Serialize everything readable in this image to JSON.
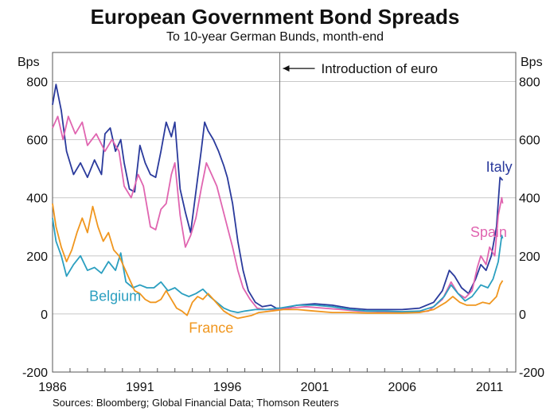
{
  "chart_data": {
    "type": "line",
    "title": "European Government Bond Spreads",
    "subtitle": "To 10-year German Bunds, month-end",
    "source": "Sources: Bloomberg; Global Financial Data; Thomson Reuters",
    "y_unit_left": "Bps",
    "y_unit_right": "Bps",
    "ylim": [
      -200,
      900
    ],
    "y_ticks": [
      "800",
      "600",
      "400",
      "200",
      "0",
      "-200"
    ],
    "y_ticks_right": [
      "800",
      "600",
      "400",
      "200",
      "0",
      "-200"
    ],
    "x_ticks": [
      "1986",
      "1991",
      "1996",
      "2001",
      "2006",
      "2011"
    ],
    "x_tick_values": [
      1986,
      1991,
      1996,
      2001,
      2006,
      2011
    ],
    "xlim": [
      1986,
      2012.5
    ],
    "grid": "horizontal",
    "annotation": {
      "text": "Introduction of euro",
      "x": 1999.0
    },
    "series": [
      {
        "name": "Italy",
        "color": "#2a3a9c",
        "points": [
          [
            1986.0,
            720
          ],
          [
            1986.2,
            790
          ],
          [
            1986.5,
            700
          ],
          [
            1986.8,
            560
          ],
          [
            1987.2,
            480
          ],
          [
            1987.6,
            520
          ],
          [
            1988.0,
            470
          ],
          [
            1988.4,
            530
          ],
          [
            1988.8,
            480
          ],
          [
            1989.0,
            620
          ],
          [
            1989.3,
            640
          ],
          [
            1989.6,
            560
          ],
          [
            1989.9,
            600
          ],
          [
            1990.1,
            520
          ],
          [
            1990.4,
            430
          ],
          [
            1990.7,
            420
          ],
          [
            1991.0,
            580
          ],
          [
            1991.3,
            520
          ],
          [
            1991.6,
            480
          ],
          [
            1991.9,
            470
          ],
          [
            1992.2,
            560
          ],
          [
            1992.5,
            660
          ],
          [
            1992.8,
            610
          ],
          [
            1993.0,
            660
          ],
          [
            1993.3,
            430
          ],
          [
            1993.6,
            350
          ],
          [
            1993.9,
            280
          ],
          [
            1994.2,
            420
          ],
          [
            1994.5,
            560
          ],
          [
            1994.7,
            660
          ],
          [
            1994.9,
            630
          ],
          [
            1995.2,
            600
          ],
          [
            1995.5,
            560
          ],
          [
            1995.8,
            510
          ],
          [
            1996.0,
            470
          ],
          [
            1996.3,
            380
          ],
          [
            1996.6,
            250
          ],
          [
            1996.9,
            150
          ],
          [
            1997.2,
            80
          ],
          [
            1997.6,
            40
          ],
          [
            1998.0,
            25
          ],
          [
            1998.5,
            30
          ],
          [
            1998.8,
            20
          ],
          [
            1999.2,
            20
          ],
          [
            2000.0,
            30
          ],
          [
            2001.0,
            35
          ],
          [
            2002.0,
            30
          ],
          [
            2003.0,
            20
          ],
          [
            2004.0,
            15
          ],
          [
            2005.0,
            15
          ],
          [
            2006.0,
            15
          ],
          [
            2007.0,
            20
          ],
          [
            2007.8,
            40
          ],
          [
            2008.3,
            80
          ],
          [
            2008.7,
            150
          ],
          [
            2009.0,
            130
          ],
          [
            2009.4,
            90
          ],
          [
            2009.8,
            70
          ],
          [
            2010.2,
            120
          ],
          [
            2010.5,
            170
          ],
          [
            2010.8,
            150
          ],
          [
            2011.1,
            200
          ],
          [
            2011.4,
            300
          ],
          [
            2011.6,
            470
          ],
          [
            2011.75,
            460
          ]
        ]
      },
      {
        "name": "Spain",
        "color": "#e065b0",
        "points": [
          [
            1986.0,
            640
          ],
          [
            1986.3,
            680
          ],
          [
            1986.6,
            600
          ],
          [
            1986.9,
            680
          ],
          [
            1987.3,
            620
          ],
          [
            1987.7,
            660
          ],
          [
            1988.0,
            580
          ],
          [
            1988.5,
            620
          ],
          [
            1989.0,
            560
          ],
          [
            1989.4,
            600
          ],
          [
            1989.8,
            560
          ],
          [
            1990.1,
            440
          ],
          [
            1990.5,
            400
          ],
          [
            1990.9,
            480
          ],
          [
            1991.2,
            440
          ],
          [
            1991.6,
            300
          ],
          [
            1991.9,
            290
          ],
          [
            1992.2,
            360
          ],
          [
            1992.5,
            380
          ],
          [
            1992.8,
            480
          ],
          [
            1993.0,
            520
          ],
          [
            1993.3,
            340
          ],
          [
            1993.6,
            230
          ],
          [
            1993.9,
            270
          ],
          [
            1994.2,
            330
          ],
          [
            1994.5,
            430
          ],
          [
            1994.8,
            520
          ],
          [
            1995.1,
            480
          ],
          [
            1995.4,
            440
          ],
          [
            1995.7,
            370
          ],
          [
            1996.0,
            300
          ],
          [
            1996.3,
            230
          ],
          [
            1996.6,
            150
          ],
          [
            1996.9,
            90
          ],
          [
            1997.3,
            50
          ],
          [
            1997.7,
            20
          ],
          [
            1998.2,
            15
          ],
          [
            1998.8,
            15
          ],
          [
            1999.5,
            20
          ],
          [
            2000.5,
            25
          ],
          [
            2001.5,
            20
          ],
          [
            2002.5,
            15
          ],
          [
            2003.5,
            10
          ],
          [
            2004.5,
            8
          ],
          [
            2005.5,
            5
          ],
          [
            2006.5,
            5
          ],
          [
            2007.5,
            10
          ],
          [
            2008.3,
            50
          ],
          [
            2008.8,
            110
          ],
          [
            2009.2,
            70
          ],
          [
            2009.6,
            55
          ],
          [
            2010.0,
            80
          ],
          [
            2010.3,
            160
          ],
          [
            2010.5,
            200
          ],
          [
            2010.8,
            170
          ],
          [
            2011.0,
            230
          ],
          [
            2011.3,
            200
          ],
          [
            2011.5,
            340
          ],
          [
            2011.7,
            400
          ],
          [
            2011.75,
            380
          ]
        ]
      },
      {
        "name": "Belgium",
        "color": "#2b9fc0",
        "points": [
          [
            1986.0,
            330
          ],
          [
            1986.2,
            250
          ],
          [
            1986.5,
            200
          ],
          [
            1986.8,
            130
          ],
          [
            1987.2,
            170
          ],
          [
            1987.6,
            200
          ],
          [
            1988.0,
            150
          ],
          [
            1988.4,
            160
          ],
          [
            1988.8,
            140
          ],
          [
            1989.2,
            180
          ],
          [
            1989.6,
            150
          ],
          [
            1989.9,
            210
          ],
          [
            1990.2,
            110
          ],
          [
            1990.6,
            90
          ],
          [
            1991.0,
            100
          ],
          [
            1991.4,
            90
          ],
          [
            1991.8,
            90
          ],
          [
            1992.2,
            110
          ],
          [
            1992.6,
            80
          ],
          [
            1993.0,
            90
          ],
          [
            1993.4,
            70
          ],
          [
            1993.8,
            60
          ],
          [
            1994.2,
            70
          ],
          [
            1994.6,
            85
          ],
          [
            1995.0,
            60
          ],
          [
            1995.4,
            40
          ],
          [
            1995.8,
            20
          ],
          [
            1996.2,
            10
          ],
          [
            1996.6,
            5
          ],
          [
            1997.0,
            10
          ],
          [
            1997.6,
            15
          ],
          [
            1998.2,
            15
          ],
          [
            1999.0,
            20
          ],
          [
            2000.0,
            30
          ],
          [
            2001.0,
            30
          ],
          [
            2002.0,
            25
          ],
          [
            2003.0,
            15
          ],
          [
            2004.0,
            10
          ],
          [
            2005.0,
            10
          ],
          [
            2006.0,
            8
          ],
          [
            2007.0,
            10
          ],
          [
            2007.8,
            25
          ],
          [
            2008.4,
            60
          ],
          [
            2008.8,
            100
          ],
          [
            2009.2,
            70
          ],
          [
            2009.6,
            45
          ],
          [
            2010.0,
            60
          ],
          [
            2010.5,
            100
          ],
          [
            2010.9,
            90
          ],
          [
            2011.2,
            120
          ],
          [
            2011.5,
            180
          ],
          [
            2011.7,
            270
          ],
          [
            2011.75,
            260
          ]
        ]
      },
      {
        "name": "France",
        "color": "#f0961e",
        "points": [
          [
            1986.0,
            380
          ],
          [
            1986.2,
            300
          ],
          [
            1986.5,
            230
          ],
          [
            1986.8,
            180
          ],
          [
            1987.1,
            220
          ],
          [
            1987.4,
            280
          ],
          [
            1987.7,
            330
          ],
          [
            1988.0,
            280
          ],
          [
            1988.3,
            370
          ],
          [
            1988.6,
            300
          ],
          [
            1988.9,
            250
          ],
          [
            1989.2,
            280
          ],
          [
            1989.5,
            220
          ],
          [
            1989.8,
            200
          ],
          [
            1990.1,
            160
          ],
          [
            1990.4,
            120
          ],
          [
            1990.7,
            80
          ],
          [
            1991.0,
            70
          ],
          [
            1991.3,
            50
          ],
          [
            1991.6,
            40
          ],
          [
            1991.9,
            40
          ],
          [
            1992.2,
            50
          ],
          [
            1992.5,
            80
          ],
          [
            1992.8,
            50
          ],
          [
            1993.1,
            20
          ],
          [
            1993.4,
            10
          ],
          [
            1993.7,
            -5
          ],
          [
            1994.0,
            40
          ],
          [
            1994.3,
            60
          ],
          [
            1994.6,
            50
          ],
          [
            1994.9,
            70
          ],
          [
            1995.2,
            50
          ],
          [
            1995.5,
            30
          ],
          [
            1995.8,
            10
          ],
          [
            1996.2,
            -5
          ],
          [
            1996.6,
            -15
          ],
          [
            1997.0,
            -10
          ],
          [
            1997.4,
            -5
          ],
          [
            1997.8,
            5
          ],
          [
            1998.5,
            10
          ],
          [
            1999.2,
            15
          ],
          [
            2000.0,
            15
          ],
          [
            2001.0,
            10
          ],
          [
            2002.0,
            5
          ],
          [
            2003.0,
            5
          ],
          [
            2004.0,
            3
          ],
          [
            2005.0,
            3
          ],
          [
            2006.0,
            3
          ],
          [
            2007.0,
            5
          ],
          [
            2007.8,
            15
          ],
          [
            2008.5,
            40
          ],
          [
            2008.9,
            60
          ],
          [
            2009.3,
            40
          ],
          [
            2009.7,
            30
          ],
          [
            2010.2,
            30
          ],
          [
            2010.6,
            40
          ],
          [
            2011.0,
            35
          ],
          [
            2011.4,
            60
          ],
          [
            2011.6,
            100
          ],
          [
            2011.75,
            115
          ]
        ]
      }
    ],
    "series_labels": [
      {
        "name": "Italy",
        "x": 2010.8,
        "y": 490
      },
      {
        "name": "Spain",
        "x": 2009.9,
        "y": 265
      },
      {
        "name": "Belgium",
        "x": 1988.1,
        "y": 45
      },
      {
        "name": "France",
        "x": 1993.8,
        "y": -65
      }
    ]
  }
}
